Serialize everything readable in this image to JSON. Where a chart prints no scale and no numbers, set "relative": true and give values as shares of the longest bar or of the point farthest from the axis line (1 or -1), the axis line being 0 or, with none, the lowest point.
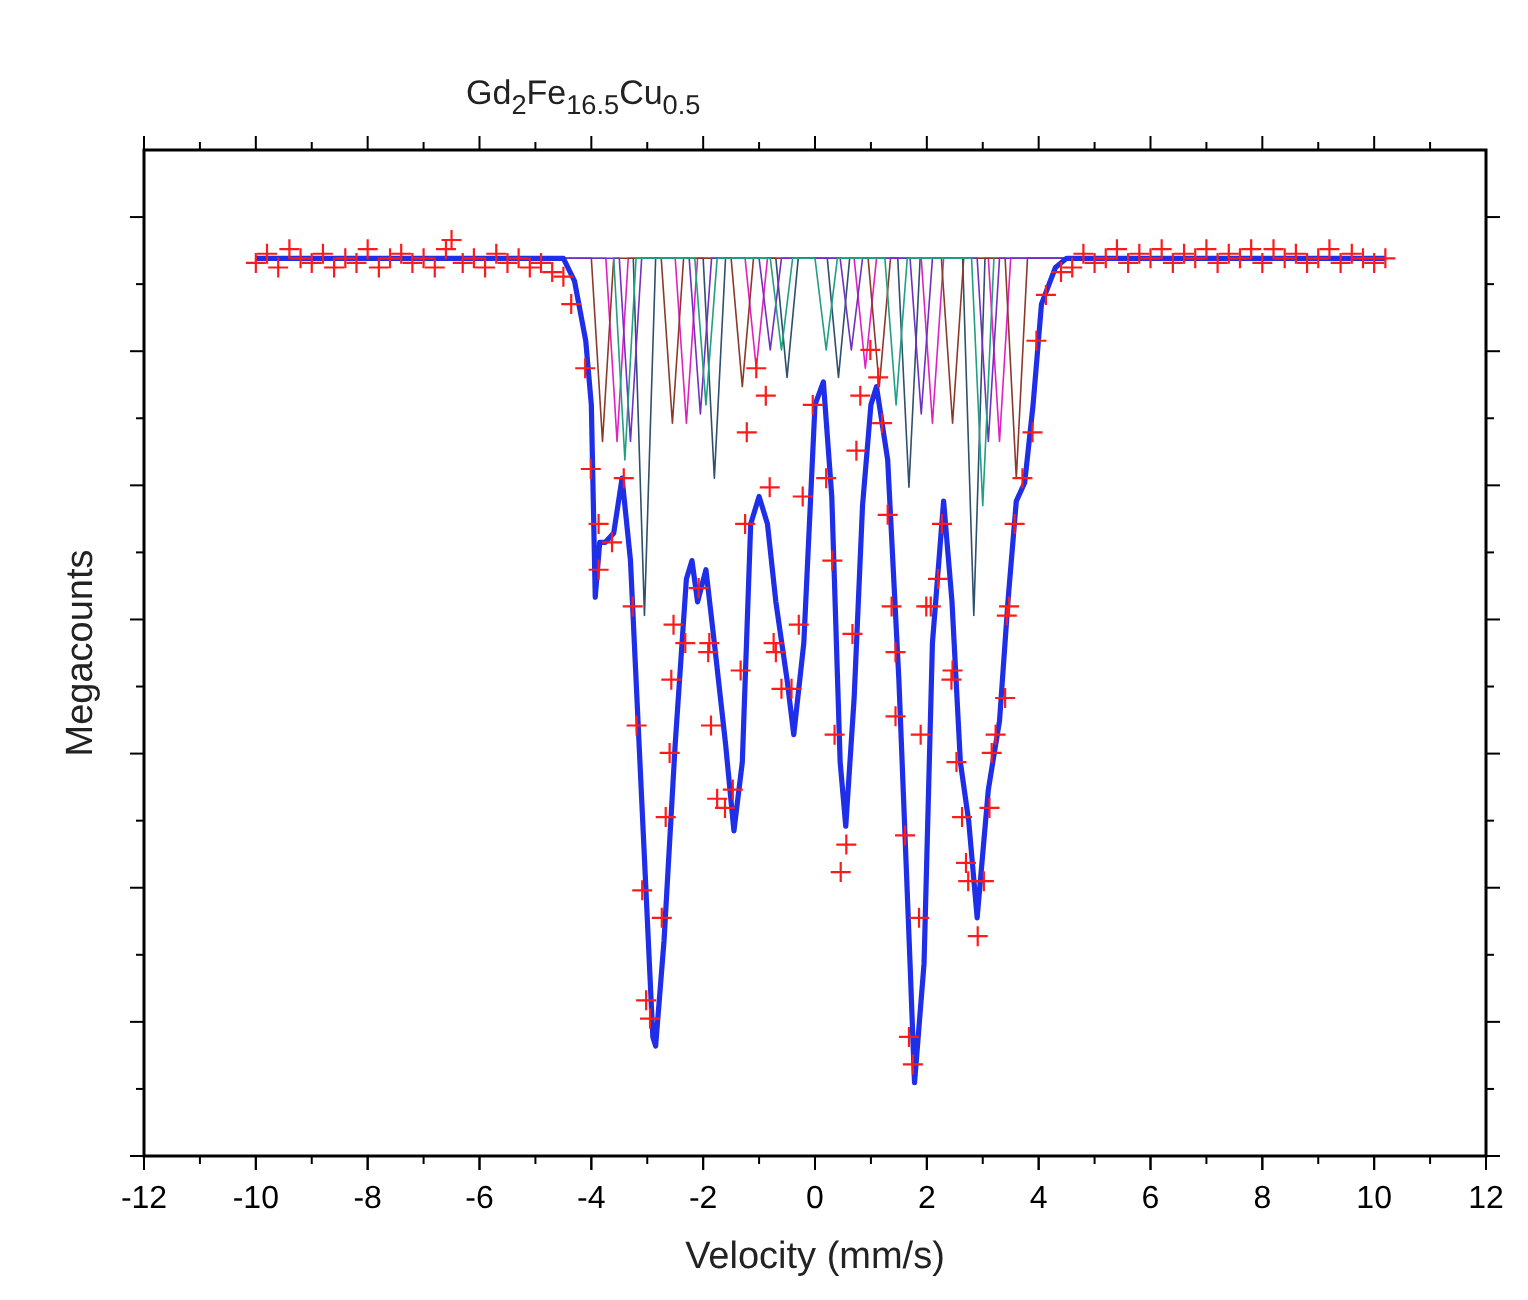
{
  "chart_data": {
    "type": "line",
    "title": "Gd$_{2}$Fe$_{16.5}$Cu$_{0.5}$",
    "xlabel": "Velocity (mm/s)",
    "ylabel": "Megacounts",
    "relative": true,
    "xlim": [
      -12,
      12
    ],
    "xticks": [
      -12,
      -10,
      -8,
      -6,
      -4,
      -2,
      0,
      2,
      4,
      6,
      8,
      10,
      12
    ],
    "grid": false,
    "series": [
      {
        "color": "#2f4f6f",
        "x": [
          -3.25,
          -3.05,
          -2.85,
          -2.0,
          -1.8,
          -1.6,
          -0.7,
          -0.5,
          -0.3,
          0.22,
          0.42,
          0.62,
          1.48,
          1.68,
          1.88,
          2.64,
          2.84,
          3.04,
          10.2
        ],
        "values": [
          0.98,
          0.59,
          0.98,
          0.98,
          0.74,
          0.98,
          0.98,
          0.85,
          0.98,
          0.98,
          0.85,
          0.98,
          0.98,
          0.73,
          0.98,
          0.98,
          0.59,
          0.98,
          0.98
        ]
      },
      {
        "color": "#e020c0",
        "x": [
          -10,
          -3.74,
          -3.54,
          -3.34,
          -2.5,
          -2.3,
          -2.1,
          -1.25,
          -1.05,
          -0.85,
          0.7,
          0.9,
          1.1,
          1.9,
          2.1,
          2.3,
          3.1,
          3.3,
          3.5,
          10.2
        ],
        "values": [
          0.98,
          0.98,
          0.78,
          0.98,
          0.98,
          0.8,
          0.98,
          0.98,
          0.86,
          0.98,
          0.98,
          0.86,
          0.98,
          0.98,
          0.8,
          0.98,
          0.98,
          0.78,
          0.98,
          0.98
        ]
      },
      {
        "color": "#8b3a2a",
        "x": [
          -10,
          -4.0,
          -3.8,
          -3.6,
          -2.75,
          -2.55,
          -2.35,
          -1.5,
          -1.3,
          -1.1,
          0.95,
          1.15,
          1.35,
          2.26,
          2.46,
          2.66,
          3.4,
          3.6,
          3.8,
          10.2
        ],
        "values": [
          0.98,
          0.98,
          0.78,
          0.98,
          0.98,
          0.8,
          0.98,
          0.98,
          0.84,
          0.98,
          0.98,
          0.84,
          0.98,
          0.98,
          0.8,
          0.98,
          0.98,
          0.74,
          0.98,
          0.98
        ]
      },
      {
        "color": "#7030c0",
        "x": [
          -10,
          -3.5,
          -3.3,
          -3.1,
          -2.25,
          -2.05,
          -1.85,
          -1.0,
          -0.8,
          -0.6,
          0.45,
          0.65,
          0.85,
          1.7,
          1.9,
          2.1,
          2.9,
          3.1,
          3.3,
          10.2
        ],
        "values": [
          0.98,
          0.98,
          0.78,
          0.98,
          0.98,
          0.81,
          0.98,
          0.98,
          0.88,
          0.98,
          0.98,
          0.88,
          0.98,
          0.98,
          0.81,
          0.98,
          0.98,
          0.78,
          0.98,
          0.98
        ]
      },
      {
        "color": "#20a080",
        "x": [
          -3.6,
          -3.4,
          -3.2,
          -2.15,
          -1.95,
          -1.75,
          -0.8,
          -0.6,
          -0.4,
          0.0,
          0.2,
          0.4,
          1.25,
          1.45,
          1.65,
          2.8,
          3.0,
          3.2
        ],
        "values": [
          0.98,
          0.76,
          0.98,
          0.98,
          0.82,
          0.98,
          0.98,
          0.88,
          0.98,
          0.98,
          0.88,
          0.98,
          0.98,
          0.82,
          0.98,
          0.98,
          0.71,
          0.98
        ]
      },
      {
        "color": "#1f2ee8",
        "x": [
          -10,
          -4.5,
          -4.3,
          -4.1,
          -4.0,
          -3.93,
          -3.85,
          -3.75,
          -3.6,
          -3.45,
          -3.3,
          -3.1,
          -2.9,
          -2.85,
          -2.7,
          -2.5,
          -2.3,
          -2.2,
          -2.1,
          -1.95,
          -1.8,
          -1.6,
          -1.45,
          -1.3,
          -1.15,
          -1.0,
          -0.85,
          -0.7,
          -0.5,
          -0.38,
          -0.2,
          0,
          0.15,
          0.3,
          0.45,
          0.55,
          0.7,
          0.85,
          1.0,
          1.1,
          1.3,
          1.5,
          1.7,
          1.78,
          1.95,
          2.1,
          2.3,
          2.45,
          2.6,
          2.75,
          2.9,
          3.1,
          3.3,
          3.45,
          3.6,
          3.75,
          3.9,
          4.05,
          4.3,
          4.5,
          10.2
        ],
        "values": [
          0.98,
          0.98,
          0.955,
          0.89,
          0.82,
          0.61,
          0.67,
          0.67,
          0.68,
          0.74,
          0.65,
          0.39,
          0.13,
          0.12,
          0.235,
          0.45,
          0.63,
          0.65,
          0.605,
          0.64,
          0.56,
          0.45,
          0.355,
          0.43,
          0.69,
          0.72,
          0.69,
          0.605,
          0.52,
          0.46,
          0.56,
          0.82,
          0.845,
          0.72,
          0.43,
          0.36,
          0.5,
          0.71,
          0.82,
          0.84,
          0.76,
          0.52,
          0.21,
          0.08,
          0.21,
          0.56,
          0.715,
          0.605,
          0.43,
          0.365,
          0.26,
          0.4,
          0.475,
          0.605,
          0.715,
          0.735,
          0.82,
          0.93,
          0.97,
          0.98,
          0.98
        ]
      },
      {
        "type": "scatter",
        "color": "#ff1a1a",
        "marker": "cross",
        "x": [
          -10,
          -9.8,
          -9.6,
          -9.4,
          -9.2,
          -9,
          -8.8,
          -8.6,
          -8.4,
          -8.2,
          -8,
          -7.8,
          -7.6,
          -7.4,
          -7.2,
          -7,
          -6.8,
          -6.6,
          -6.5,
          -6.3,
          -6.1,
          -5.9,
          -5.7,
          -5.5,
          -5.3,
          -5.1,
          -4.9,
          -4.7,
          -4.5,
          -4.36,
          -4.11,
          -4.01,
          -3.87,
          -3.87,
          -3.63,
          -3.42,
          -3.26,
          -3.19,
          -3.09,
          -3.02,
          -2.95,
          -2.74,
          -2.67,
          -2.6,
          -2.57,
          -2.53,
          -2.32,
          -2.08,
          -1.91,
          -1.89,
          -1.86,
          -1.75,
          -1.61,
          -1.47,
          -1.33,
          -1.25,
          -1.22,
          -1.05,
          -0.88,
          -0.81,
          -0.74,
          -0.7,
          -0.6,
          -0.42,
          -0.29,
          -0.22,
          -0.04,
          0.2,
          0.31,
          0.35,
          0.46,
          0.56,
          0.67,
          0.74,
          0.81,
          0.99,
          1.13,
          1.2,
          1.3,
          1.37,
          1.44,
          1.44,
          1.61,
          1.68,
          1.75,
          1.86,
          1.89,
          1.99,
          2.07,
          2.2,
          2.27,
          2.44,
          2.46,
          2.53,
          2.63,
          2.7,
          2.74,
          2.91,
          3.02,
          3.12,
          3.16,
          3.23,
          3.4,
          3.43,
          3.47,
          3.57,
          3.71,
          3.89,
          3.96,
          4.13,
          4.4,
          4.6,
          4.8,
          5,
          5.2,
          5.4,
          5.6,
          5.8,
          6,
          6.2,
          6.4,
          6.6,
          6.8,
          7,
          7.2,
          7.4,
          7.6,
          7.8,
          8,
          8.2,
          8.4,
          8.6,
          8.8,
          9,
          9.2,
          9.4,
          9.6,
          9.8,
          10,
          10.2
        ],
        "values": [
          0.975,
          0.985,
          0.97,
          0.99,
          0.98,
          0.975,
          0.985,
          0.97,
          0.98,
          0.975,
          0.99,
          0.97,
          0.98,
          0.985,
          0.975,
          0.98,
          0.97,
          0.99,
          1.0,
          0.975,
          0.98,
          0.97,
          0.985,
          0.975,
          0.98,
          0.97,
          0.975,
          0.965,
          0.96,
          0.93,
          0.86,
          0.75,
          0.69,
          0.64,
          0.67,
          0.74,
          0.6,
          0.47,
          0.29,
          0.17,
          0.15,
          0.26,
          0.37,
          0.44,
          0.52,
          0.58,
          0.56,
          0.62,
          0.55,
          0.56,
          0.47,
          0.39,
          0.38,
          0.4,
          0.53,
          0.69,
          0.79,
          0.86,
          0.83,
          0.73,
          0.56,
          0.55,
          0.51,
          0.51,
          0.58,
          0.72,
          0.82,
          0.74,
          0.65,
          0.46,
          0.31,
          0.34,
          0.57,
          0.77,
          0.83,
          0.88,
          0.85,
          0.8,
          0.7,
          0.6,
          0.55,
          0.48,
          0.35,
          0.13,
          0.1,
          0.26,
          0.46,
          0.6,
          0.6,
          0.63,
          0.69,
          0.52,
          0.53,
          0.43,
          0.37,
          0.32,
          0.3,
          0.24,
          0.3,
          0.38,
          0.44,
          0.46,
          0.5,
          0.59,
          0.6,
          0.69,
          0.74,
          0.79,
          0.89,
          0.94,
          0.965,
          0.97,
          0.985,
          0.975,
          0.98,
          0.99,
          0.975,
          0.985,
          0.98,
          0.99,
          0.975,
          0.985,
          0.98,
          0.99,
          0.975,
          0.985,
          0.98,
          0.99,
          0.975,
          0.99,
          0.98,
          0.985,
          0.975,
          0.98,
          0.99,
          0.975,
          0.985,
          0.98,
          0.975,
          0.98
        ]
      }
    ]
  }
}
